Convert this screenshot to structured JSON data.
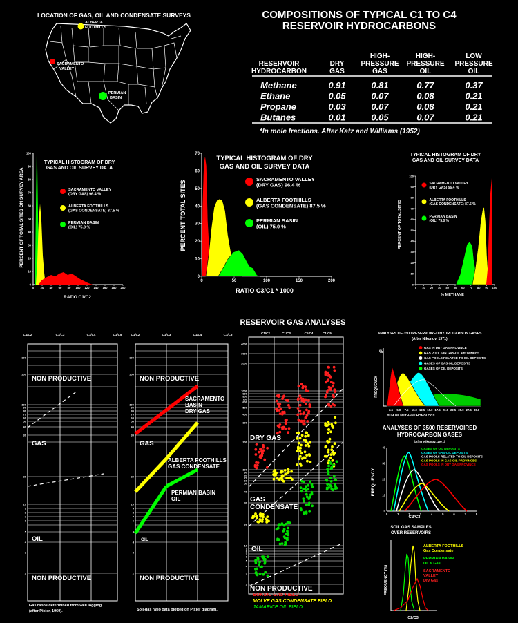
{
  "map": {
    "title": "LOCATION OF GAS, OIL AND CONDENSATE SURVEYS",
    "sites": [
      {
        "name": "ALBERTA FOOTHILLS",
        "color": "#ffff00"
      },
      {
        "name": "SACRAMENTO VALLEY",
        "color": "#ff0000"
      },
      {
        "name": "PERMIAN BASIN",
        "color": "#00ff00"
      }
    ]
  },
  "composition": {
    "title_line1": "COMPOSITIONS OF TYPICAL C1 TO C4",
    "title_line2": "RESERVOIR HYDROCARBONS",
    "header": {
      "col0": [
        "RESERVOIR",
        "HYDROCARBON"
      ],
      "col1": [
        "DRY",
        "GAS"
      ],
      "col2": [
        "HIGH-",
        "PRESSURE",
        "GAS"
      ],
      "col3": [
        "HIGH-",
        "PRESSURE",
        "OIL"
      ],
      "col4": [
        "LOW",
        "PRESSURE",
        "OIL"
      ]
    },
    "rows": [
      {
        "name": "Methane",
        "values": [
          "0.91",
          "0.81",
          "0.77",
          "0.37"
        ]
      },
      {
        "name": "Ethane",
        "values": [
          "0.05",
          "0.07",
          "0.08",
          "0.21"
        ]
      },
      {
        "name": "Propane",
        "values": [
          "0.03",
          "0.07",
          "0.08",
          "0.21"
        ]
      },
      {
        "name": "Butanes",
        "values": [
          "0.01",
          "0.05",
          "0.07",
          "0.21"
        ]
      }
    ],
    "footnote": "*In mole fractions.  After Katz and Williams (1952)"
  },
  "histograms": {
    "title_line1": "TYPICAL HISTOGRAM OF DRY",
    "title_line2": "GAS AND OIL SURVEY DATA",
    "title_line2_big": "GAS AND OIL SURVEY DATA",
    "legend": [
      {
        "line1": "SACRAMENTO VALLEY",
        "line2": "(DRY GAS) 96.4 %",
        "color": "#ff0000"
      },
      {
        "line1": "ALBERTA FOOTHILLS",
        "line2": "(GAS CONDENSATE) 87.5 %",
        "color": "#ffff00"
      },
      {
        "line1": "PERMIAN BASIN",
        "line2": "(OIL) 75.0 %",
        "color": "#00ff00"
      }
    ],
    "h1": {
      "ylabel": "PERCENT OF TOTAL SITES ON SURVEY AREA",
      "xlabel": "RATIO C1/C2",
      "xticks": [
        "0",
        "20",
        "40",
        "60",
        "80",
        "100",
        "120",
        "140",
        "160",
        "180",
        "200"
      ],
      "yticks": [
        "0",
        "10",
        "20",
        "30",
        "40",
        "50",
        "60",
        "70",
        "80",
        "90",
        "100"
      ]
    },
    "h2": {
      "ylabel": "PERCENT TOTAL SITES",
      "xlabel": "RATIO C3/C1 * 1000",
      "xticks": [
        "0",
        "50",
        "100",
        "150",
        "200"
      ],
      "yticks": [
        "0",
        "10",
        "20",
        "30",
        "40",
        "50",
        "60",
        "70"
      ]
    },
    "h3": {
      "ylabel": "PERCENT OF TOTAL SITES",
      "xlabel": "% METHANE",
      "xticks": [
        "0",
        "10",
        "20",
        "30",
        "40",
        "50",
        "60",
        "70",
        "80",
        "90",
        "100"
      ],
      "yticks": [
        "0",
        "10",
        "20",
        "30",
        "40",
        "50",
        "60",
        "70",
        "80",
        "90",
        "100"
      ]
    }
  },
  "reservoir": {
    "title": "RESERVOIR GAS ANALYSES",
    "pixler1": {
      "zones": [
        "NON PRODUCTIVE",
        "GAS",
        "OIL",
        "NON PRODUCTIVE"
      ],
      "caption_line1": "Gas ratios determined from well logging",
      "caption_line2": "(after Pixler, 1969)."
    },
    "pixler2": {
      "zones": [
        "NON PRODUCTIVE",
        "GAS",
        "OIL",
        "NON PRODUCTIVE"
      ],
      "labels": [
        {
          "l1": "SACRAMENTO",
          "l2": "BASIN",
          "l3": "DRY GAS"
        },
        {
          "l1": "ALBERTA FOOTHILLS",
          "l2": "GAS CONDENSATE",
          "l3": ""
        },
        {
          "l1": "PERMIAN BASIN",
          "l2": "OIL",
          "l3": ""
        }
      ],
      "caption": "Soil-gas ratio data plotted on Pixler diagram."
    },
    "scatter": {
      "cols": [
        "C1/C2",
        "C1/C3",
        "C1/C4",
        "C1/C5"
      ],
      "yticks": [
        "4000",
        "3000",
        "2000",
        "1000",
        "900",
        "800",
        "700",
        "600",
        "500",
        "400",
        "300",
        "200",
        "100",
        "90",
        "80",
        "70",
        "60",
        "50",
        "40",
        "30",
        "20",
        "10",
        "9",
        "8",
        "7",
        "6",
        "5",
        "4",
        "3",
        "2"
      ],
      "zones": [
        "DRY GAS",
        "GAS",
        "CONDENSATE",
        "OIL",
        "NON  PRODUCTIVE"
      ],
      "legend": [
        {
          "text": "BOKSIC GAS FIELD",
          "color": "#ff2020"
        },
        {
          "text": "MOLVE GAS CONDENSATE FIELD",
          "color": "#ffff00"
        },
        {
          "text": "JAMARICE OIL FIELD",
          "color": "#00dd00"
        }
      ]
    }
  },
  "nikonov1": {
    "title": "ANALYSES OF 3500 RESERVOIRED HYDROCARBON GASES",
    "subtitle": "(After Nikonov, 1971)",
    "ylabel": "FREQUENCY",
    "ytick": "%",
    "xlabel": "SUM OF METHANE HOMOLOGS",
    "xticks": [
      "2.5",
      "5.0",
      "7.5",
      "10.0",
      "12.5",
      "15.0",
      "17.5",
      "20.0",
      "22.5",
      "25.0",
      "27.5",
      "30.0"
    ],
    "legend": [
      {
        "text": "GAS IN DRY GAS PROVINCE",
        "color": "#ff0000"
      },
      {
        "text": "GAS POOLS IN GAS-OIL PROVINCES",
        "color": "#ffff00"
      },
      {
        "text": "GAS POOLS RELATED TO OIL DEPOSITS",
        "color": "#ffffff"
      },
      {
        "text": "GASES OF GAS OIL DEPOSITS",
        "color": "#00ffff"
      },
      {
        "text": "GASES OF OIL DEPOSITS",
        "color": "#00ff00"
      }
    ]
  },
  "nikonov2": {
    "title_line1": "ANALYSES OF 3500 RESERVOIRED",
    "title_line2": "HYDROCARBON GASES",
    "subtitle": "(After Nikonov, 1971)",
    "ylabel": "FREQUENCY",
    "xlabel": "C2/C3",
    "xticks": [
      "0",
      "1",
      "2",
      "3",
      "4",
      "5",
      "6",
      "7",
      "8"
    ],
    "yticks": [
      "0",
      "10",
      "20",
      "30",
      "40"
    ],
    "legend": [
      {
        "text": "GASES OF OIL DEPOSITS",
        "color": "#00ff00"
      },
      {
        "text": "GASES OF GAS-OIL DEPOSITS",
        "color": "#00ffff"
      },
      {
        "text": "GAS POOLS RELATED TO OIL DEPOSITS",
        "color": "#ffffff"
      },
      {
        "text": "GAS POOLS IN GAS-OIL PROVINCES",
        "color": "#ffff00"
      },
      {
        "text": "GAS POOLS IN DRY GAS PROVINCE",
        "color": "#ff0000"
      }
    ]
  },
  "soil": {
    "title_line1": "SOIL GAS SAMPLES",
    "title_line2": "OVER RESERVOIRS",
    "ylabel": "FREQUENCY (%)",
    "xlabel": "C2/C3",
    "legend": [
      {
        "l1": "ALBERTA FOOTHILLS",
        "l2": "Gas Condensate",
        "color": "#ffff00"
      },
      {
        "l1": "PERMIAN BASIN",
        "l2": "Oil & Gas",
        "color": "#00ff00"
      },
      {
        "l1": "SACRAMENTO",
        "l2": "VALLEY",
        "l3": "Dry Gas",
        "color": "#ff2020"
      }
    ]
  }
}
